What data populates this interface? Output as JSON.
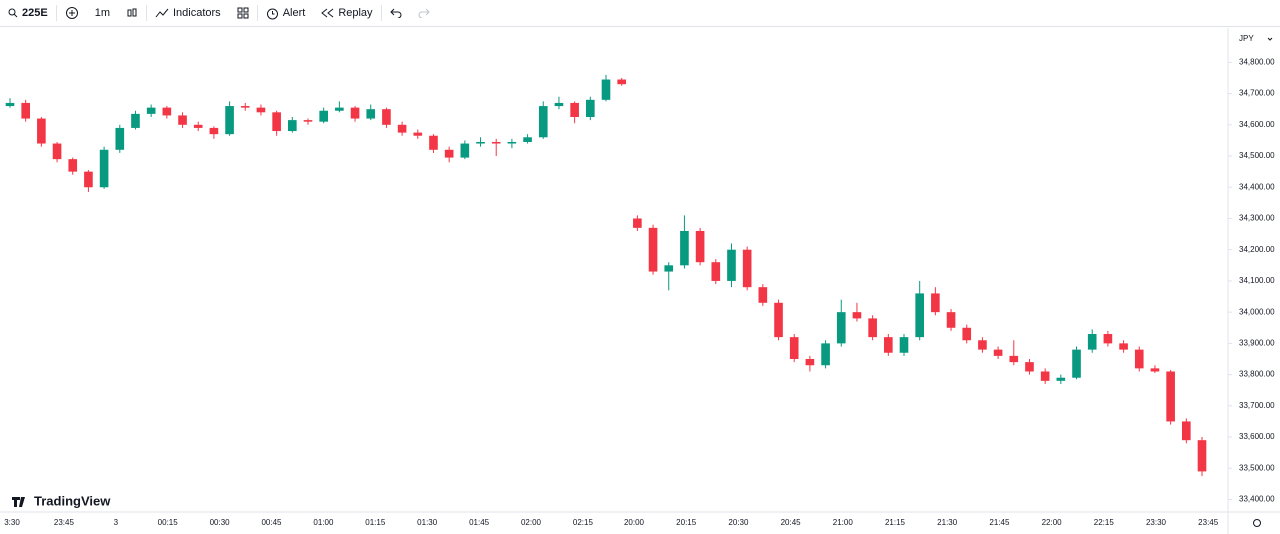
{
  "toolbar": {
    "symbol": "225E",
    "interval": "1m",
    "indicators": "Indicators",
    "alert": "Alert",
    "replay": "Replay"
  },
  "chart_data": {
    "type": "candlestick",
    "currency": "JPY",
    "watermark": "TradingView",
    "up_color": "#089981",
    "down_color": "#f23645",
    "ylim": [
      33360,
      34910
    ],
    "yticks": [
      {
        "value": 34800,
        "label": "34,800.00"
      },
      {
        "value": 34700,
        "label": "34,700.00"
      },
      {
        "value": 34600,
        "label": "34,600.00"
      },
      {
        "value": 34500,
        "label": "34,500.00"
      },
      {
        "value": 34400,
        "label": "34,400.00"
      },
      {
        "value": 34300,
        "label": "34,300.00"
      },
      {
        "value": 34200,
        "label": "34,200.00"
      },
      {
        "value": 34100,
        "label": "34,100.00"
      },
      {
        "value": 34000,
        "label": "34,000.00"
      },
      {
        "value": 33900,
        "label": "33,900.00"
      },
      {
        "value": 33800,
        "label": "33,800.00"
      },
      {
        "value": 33700,
        "label": "33,700.00"
      },
      {
        "value": 33600,
        "label": "33,600.00"
      },
      {
        "value": 33500,
        "label": "33,500.00"
      },
      {
        "value": 33400,
        "label": "33,400.00"
      }
    ],
    "x_labels": [
      "3:30",
      "23:45",
      "3",
      "00:15",
      "00:30",
      "00:45",
      "01:00",
      "01:15",
      "01:30",
      "01:45",
      "02:00",
      "02:15",
      "20:00",
      "20:15",
      "20:30",
      "20:45",
      "21:00",
      "21:15",
      "21:30",
      "21:45",
      "22:00",
      "22:15",
      "23:30",
      "23:45"
    ],
    "candles": [
      [
        34660,
        34685,
        34655,
        34670
      ],
      [
        34670,
        34680,
        34610,
        34620
      ],
      [
        34620,
        34625,
        34530,
        34540
      ],
      [
        34540,
        34545,
        34480,
        34490
      ],
      [
        34490,
        34495,
        34440,
        34450
      ],
      [
        34450,
        34455,
        34385,
        34400
      ],
      [
        34400,
        34530,
        34395,
        34520
      ],
      [
        34520,
        34600,
        34510,
        34590
      ],
      [
        34590,
        34645,
        34585,
        34635
      ],
      [
        34635,
        34665,
        34625,
        34655
      ],
      [
        34655,
        34660,
        34620,
        34630
      ],
      [
        34630,
        34640,
        34590,
        34600
      ],
      [
        34600,
        34610,
        34580,
        34590
      ],
      [
        34590,
        34595,
        34555,
        34570
      ],
      [
        34570,
        34675,
        34565,
        34660
      ],
      [
        34660,
        34670,
        34645,
        34655
      ],
      [
        34655,
        34665,
        34630,
        34640
      ],
      [
        34640,
        34645,
        34565,
        34580
      ],
      [
        34580,
        34625,
        34575,
        34615
      ],
      [
        34615,
        34620,
        34600,
        34610
      ],
      [
        34610,
        34655,
        34605,
        34645
      ],
      [
        34645,
        34675,
        34640,
        34655
      ],
      [
        34655,
        34660,
        34610,
        34620
      ],
      [
        34620,
        34665,
        34615,
        34650
      ],
      [
        34650,
        34655,
        34590,
        34600
      ],
      [
        34600,
        34610,
        34565,
        34575
      ],
      [
        34575,
        34585,
        34555,
        34565
      ],
      [
        34565,
        34570,
        34510,
        34520
      ],
      [
        34520,
        34530,
        34480,
        34495
      ],
      [
        34495,
        34550,
        34490,
        34540
      ],
      [
        34540,
        34560,
        34530,
        34545
      ],
      [
        34545,
        34555,
        34500,
        34540
      ],
      [
        34540,
        34555,
        34525,
        34545
      ],
      [
        34545,
        34570,
        34540,
        34560
      ],
      [
        34560,
        34675,
        34555,
        34660
      ],
      [
        34660,
        34690,
        34650,
        34670
      ],
      [
        34670,
        34675,
        34605,
        34625
      ],
      [
        34625,
        34690,
        34615,
        34680
      ],
      [
        34680,
        34760,
        34675,
        34745
      ],
      [
        34745,
        34750,
        34725,
        34730
      ],
      [
        34300,
        34310,
        34260,
        34270
      ],
      [
        34270,
        34280,
        34120,
        34130
      ],
      [
        34130,
        34160,
        34070,
        34150
      ],
      [
        34150,
        34310,
        34140,
        34260
      ],
      [
        34260,
        34270,
        34150,
        34160
      ],
      [
        34160,
        34170,
        34090,
        34100
      ],
      [
        34100,
        34220,
        34080,
        34200
      ],
      [
        34200,
        34210,
        34070,
        34080
      ],
      [
        34080,
        34090,
        34020,
        34030
      ],
      [
        34030,
        34040,
        33910,
        33920
      ],
      [
        33920,
        33930,
        33840,
        33850
      ],
      [
        33850,
        33860,
        33810,
        33830
      ],
      [
        33830,
        33910,
        33820,
        33900
      ],
      [
        33900,
        34040,
        33890,
        34000
      ],
      [
        34000,
        34030,
        33970,
        33980
      ],
      [
        33980,
        33990,
        33910,
        33920
      ],
      [
        33920,
        33930,
        33860,
        33870
      ],
      [
        33870,
        33930,
        33860,
        33920
      ],
      [
        33920,
        34100,
        33910,
        34060
      ],
      [
        34060,
        34080,
        33990,
        34000
      ],
      [
        34000,
        34010,
        33940,
        33950
      ],
      [
        33950,
        33960,
        33900,
        33910
      ],
      [
        33910,
        33920,
        33870,
        33880
      ],
      [
        33880,
        33890,
        33850,
        33860
      ],
      [
        33860,
        33910,
        33830,
        33840
      ],
      [
        33840,
        33850,
        33800,
        33810
      ],
      [
        33810,
        33820,
        33770,
        33780
      ],
      [
        33780,
        33800,
        33770,
        33790
      ],
      [
        33790,
        33890,
        33785,
        33880
      ],
      [
        33880,
        33945,
        33870,
        33930
      ],
      [
        33930,
        33940,
        33890,
        33900
      ],
      [
        33900,
        33910,
        33870,
        33880
      ],
      [
        33880,
        33890,
        33810,
        33820
      ],
      [
        33820,
        33830,
        33805,
        33810
      ],
      [
        33810,
        33815,
        33640,
        33650
      ],
      [
        33650,
        33660,
        33580,
        33590
      ],
      [
        33590,
        33600,
        33475,
        33490
      ]
    ]
  }
}
